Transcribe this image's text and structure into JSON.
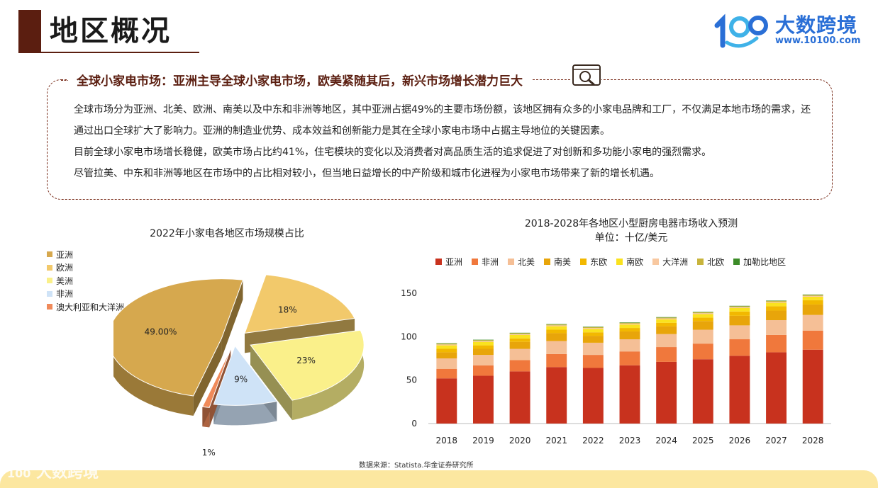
{
  "header": {
    "title": "地区概况"
  },
  "brand": {
    "name": "大数跨境",
    "url": "www.10100.com",
    "mark": "100",
    "watermark": "大数跨境"
  },
  "panel": {
    "heading": "全球小家电市场：亚洲主导全球小家电市场，欧美紧随其后，新兴市场增长潜力巨大",
    "icon": "magnifier-icon",
    "paragraphs": [
      "全球市场分为亚洲、北美、欧洲、南美以及中东和非洲等地区，其中亚洲占据49%的主要市场份额，该地区拥有众多的小家电品牌和工厂，不仅满足本地市场的需求，还通过出口全球扩大了影响力。亚洲的制造业优势、成本效益和创新能力是其在全球小家电市场中占据主导地位的关键因素。",
      "目前全球小家电市场增长稳健，欧美市场占比约41%，住宅模块的变化以及消费者对高品质生活的追求促进了对创新和多功能小家电的强烈需求。",
      "尽管拉美、中东和非洲等地区在市场中的占比相对较小，但当地日益增长的中产阶级和城市化进程为小家电市场带来了新的增长机遇。"
    ]
  },
  "source": "数据来源：Statista.华金证券研究所",
  "chart_data": [
    {
      "type": "pie",
      "title": "2022年小家电各地区市场规模占比",
      "slices": [
        {
          "name": "亚洲",
          "value": 49,
          "label": "49.00%",
          "color": "#d6a84e"
        },
        {
          "name": "欧洲",
          "value": 18,
          "label": "18%",
          "color": "#f2c96b"
        },
        {
          "name": "美洲",
          "value": 23,
          "label": "23%",
          "color": "#faf08a"
        },
        {
          "name": "非洲",
          "value": 9,
          "label": "9%",
          "color": "#cfe3f7"
        },
        {
          "name": "澳大利亚和大洋洲",
          "value": 1,
          "label": "1%",
          "color": "#f08a5a"
        }
      ],
      "legend_position": "left"
    },
    {
      "type": "bar",
      "stacked": true,
      "title": "2018-2028年各地区小型厨房电器市场收入预测",
      "subtitle": "单位：十亿/美元",
      "categories": [
        "2018",
        "2019",
        "2020",
        "2021",
        "2022",
        "2023",
        "2024",
        "2025",
        "2026",
        "2027",
        "2028"
      ],
      "ylim": [
        0,
        150
      ],
      "yticks": [
        0,
        50,
        100,
        150
      ],
      "legend_position": "top",
      "series": [
        {
          "name": "亚洲",
          "color": "#c8321e",
          "values": [
            52,
            55,
            60,
            65,
            64,
            67,
            71,
            74,
            78,
            82,
            85
          ]
        },
        {
          "name": "非洲",
          "color": "#f0783c",
          "values": [
            11,
            12,
            13,
            15,
            15,
            16,
            17,
            18,
            19,
            20,
            22
          ]
        },
        {
          "name": "北美",
          "color": "#f5bf96",
          "values": [
            12,
            12,
            13,
            15,
            14,
            14,
            15,
            16,
            16,
            17,
            18
          ]
        },
        {
          "name": "南美",
          "color": "#e8a50a",
          "values": [
            7,
            7,
            8,
            9,
            8,
            9,
            9,
            10,
            11,
            11,
            12
          ]
        },
        {
          "name": "东欧",
          "color": "#f2b800",
          "values": [
            4,
            4,
            4,
            4,
            4,
            4,
            4,
            4,
            5,
            5,
            5
          ]
        },
        {
          "name": "南欧",
          "color": "#fae21e",
          "values": [
            4,
            4,
            4,
            4,
            4,
            4,
            4,
            4,
            4,
            4,
            4
          ]
        },
        {
          "name": "大洋洲",
          "color": "#f8c8a0",
          "values": [
            1,
            1,
            1,
            1,
            1,
            1,
            1,
            1,
            1,
            1,
            1
          ]
        },
        {
          "name": "北欧",
          "color": "#c8b43c",
          "values": [
            1,
            1,
            1,
            1,
            1,
            1,
            1,
            1,
            1,
            1,
            1
          ]
        },
        {
          "name": "加勒比地区",
          "color": "#3c8c28",
          "values": [
            0.5,
            0.5,
            0.5,
            0.5,
            0.5,
            0.5,
            0.5,
            0.5,
            0.5,
            0.5,
            0.5
          ]
        }
      ]
    }
  ]
}
